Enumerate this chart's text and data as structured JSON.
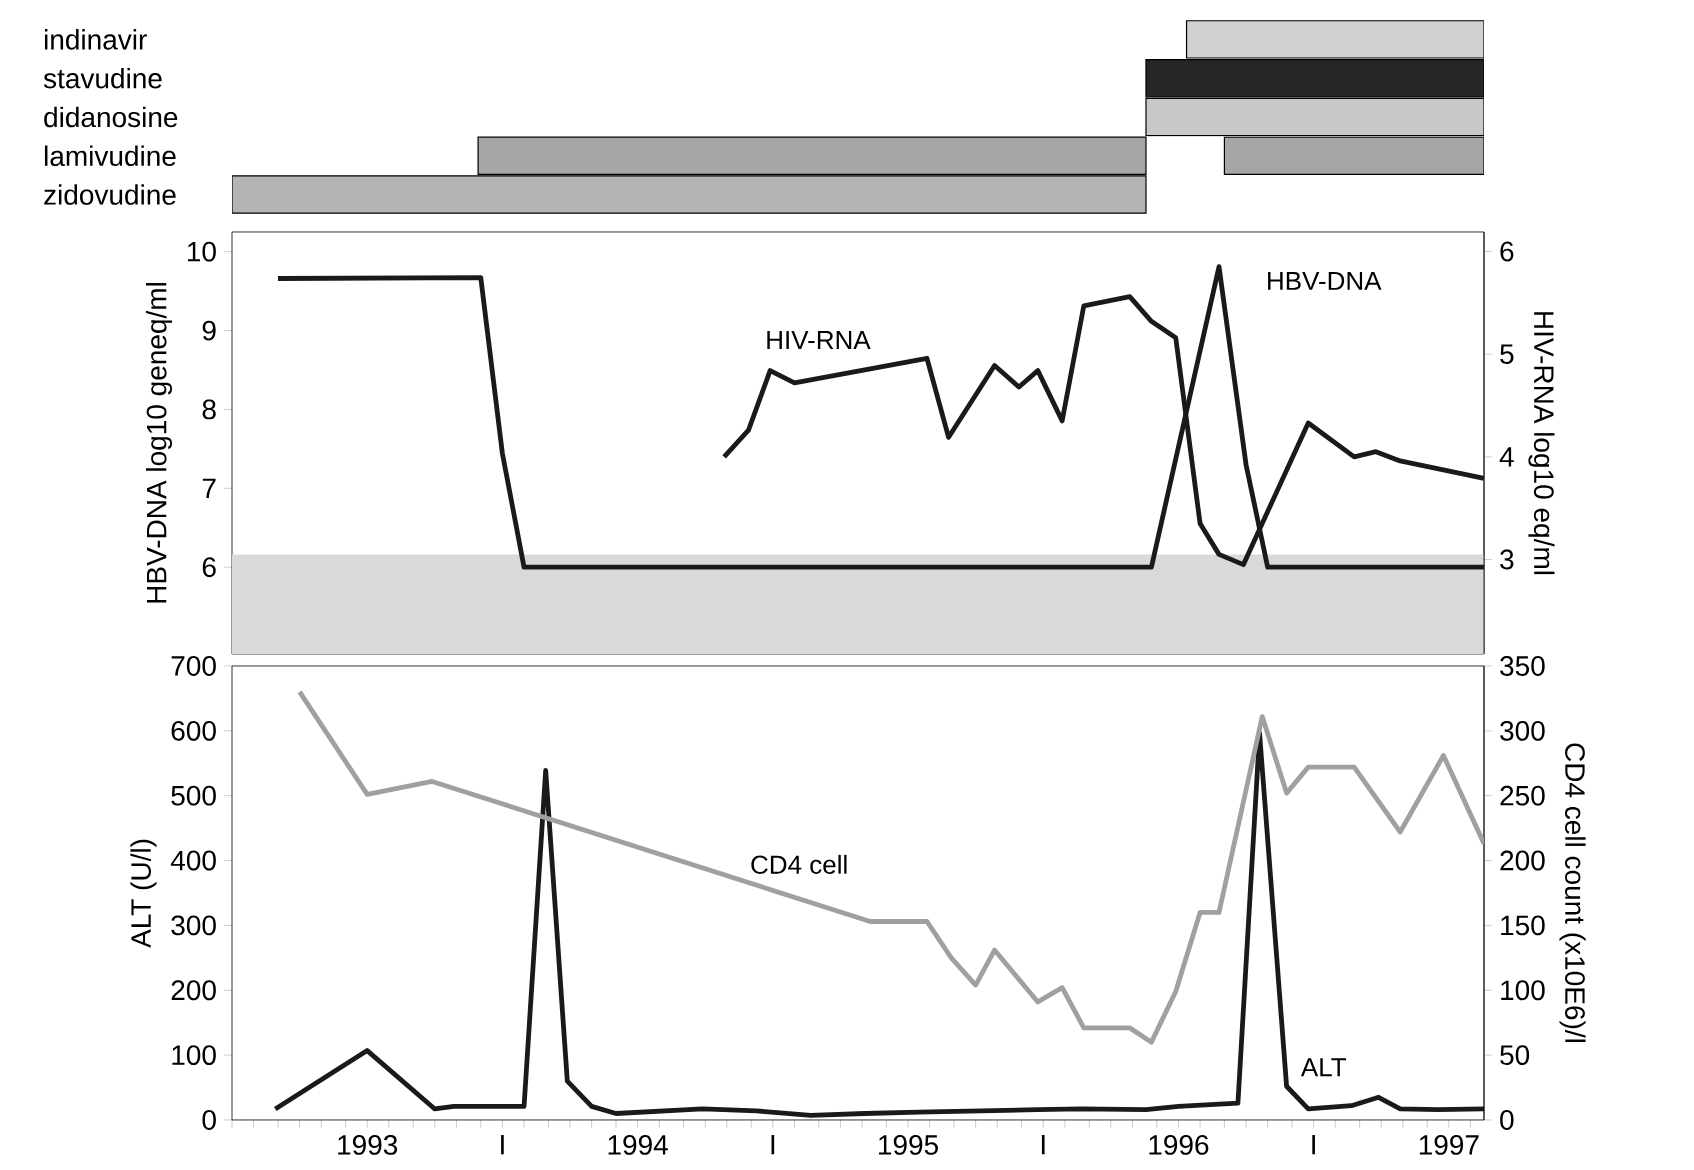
{
  "chart_data": [
    {
      "type": "bar",
      "orientation": "horizontal",
      "categories": [
        "indinavir",
        "stavudine",
        "didanosine",
        "lamivudine",
        "zidovudine"
      ],
      "xlim": [
        1992.5,
        1997.13
      ],
      "tick_labels": "y",
      "series": [
        {
          "base": [
            1996.03,
            1995.88,
            1995.88,
            1993.41,
            1992.5
          ],
          "values": [
            1.1,
            1.25,
            1.25,
            2.47,
            3.38
          ],
          "colors": [
            "#d0d0d0",
            "#262626",
            "#c8c8c8",
            "#a6a6a6",
            "#b4b4b4"
          ]
        },
        {
          "base": [
            null,
            null,
            null,
            1996.17,
            null
          ],
          "values": [
            null,
            null,
            null,
            0.96,
            null
          ],
          "color": "#a6a6a6"
        }
      ]
    },
    {
      "type": "line",
      "xlim": [
        1992.5,
        1997.13
      ],
      "ylim": [
        4.9,
        10.25
      ],
      "yticks": [
        6,
        7,
        8,
        9,
        10
      ],
      "y2lim": [
        2.08,
        6.19
      ],
      "y2ticks": [
        3,
        4,
        5,
        6
      ],
      "ylabel": "HBV-DNA log10 geneq/ml",
      "y2label": "HIV-RNA log10 eq/ml",
      "tick_labels": "y",
      "bands": [
        {
          "axis": "y",
          "from": 4.9,
          "to": 6.16,
          "color": "#d9d9d9"
        }
      ],
      "annotations": [
        "HIV-RNA",
        "HBV-DNA"
      ],
      "series": [
        {
          "color": "#1a1a1a",
          "x": [
            1992.67,
            1993.42,
            1993.5,
            1993.58,
            1995.9,
            1996.15,
            1996.25,
            1996.33,
            1997.13
          ],
          "values": [
            9.66,
            9.67,
            7.44,
            6.0,
            6.0,
            9.81,
            7.3,
            6.0,
            6.0
          ]
        },
        {
          "color": "#1a1a1a",
          "axis": "y2",
          "x": [
            1994.32,
            1994.41,
            1994.49,
            1994.58,
            1995.07,
            1995.15,
            1995.32,
            1995.41,
            1995.48,
            1995.57,
            1995.65,
            1995.82,
            1995.9,
            1995.99,
            1996.08,
            1996.15,
            1996.24,
            1996.48,
            1996.65,
            1996.73,
            1996.82,
            1997.13
          ],
          "values": [
            4.0,
            4.26,
            4.84,
            4.72,
            4.96,
            4.19,
            4.89,
            4.68,
            4.84,
            4.35,
            5.47,
            5.56,
            5.32,
            5.16,
            3.35,
            3.05,
            2.95,
            4.33,
            4.0,
            4.05,
            3.96,
            3.79
          ]
        }
      ]
    },
    {
      "type": "line",
      "xlim": [
        1992.5,
        1997.13
      ],
      "ylim": [
        0,
        700
      ],
      "yticks": [
        0,
        100,
        200,
        300,
        400,
        500,
        600,
        700
      ],
      "y2lim": [
        0,
        350
      ],
      "y2ticks": [
        0,
        50,
        100,
        150,
        200,
        250,
        300,
        350
      ],
      "ylabel": "ALT (U/l)",
      "y2label": "CD4 cell count (x10E6)/l",
      "xticks": [
        {
          "value": 1992.5,
          "label": null
        },
        {
          "value": 1992.583,
          "label": null
        },
        {
          "value": 1992.667,
          "label": null
        },
        {
          "value": 1992.75,
          "label": null
        },
        {
          "value": 1992.833,
          "label": null
        },
        {
          "value": 1992.917,
          "label": null
        },
        1993,
        {
          "value": 1993.083,
          "label": null
        },
        {
          "value": 1993.167,
          "label": null
        },
        {
          "value": 1993.25,
          "label": null
        },
        {
          "value": 1993.333,
          "label": null
        },
        {
          "value": 1993.417,
          "label": null
        },
        {
          "value": 1993.5,
          "label": "I"
        },
        {
          "value": 1993.583,
          "label": null
        },
        {
          "value": 1993.667,
          "label": null
        },
        {
          "value": 1993.75,
          "label": null
        },
        {
          "value": 1993.833,
          "label": null
        },
        {
          "value": 1993.917,
          "label": null
        },
        1994,
        {
          "value": 1994.083,
          "label": null
        },
        {
          "value": 1994.167,
          "label": null
        },
        {
          "value": 1994.25,
          "label": null
        },
        {
          "value": 1994.333,
          "label": null
        },
        {
          "value": 1994.417,
          "label": null
        },
        {
          "value": 1994.5,
          "label": "I"
        },
        {
          "value": 1994.583,
          "label": null
        },
        {
          "value": 1994.667,
          "label": null
        },
        {
          "value": 1994.75,
          "label": null
        },
        {
          "value": 1994.833,
          "label": null
        },
        {
          "value": 1994.917,
          "label": null
        },
        1995,
        {
          "value": 1995.083,
          "label": null
        },
        {
          "value": 1995.167,
          "label": null
        },
        {
          "value": 1995.25,
          "label": null
        },
        {
          "value": 1995.333,
          "label": null
        },
        {
          "value": 1995.417,
          "label": null
        },
        {
          "value": 1995.5,
          "label": "I"
        },
        {
          "value": 1995.583,
          "label": null
        },
        {
          "value": 1995.667,
          "label": null
        },
        {
          "value": 1995.75,
          "label": null
        },
        {
          "value": 1995.833,
          "label": null
        },
        {
          "value": 1995.917,
          "label": null
        },
        1996,
        {
          "value": 1996.083,
          "label": null
        },
        {
          "value": 1996.167,
          "label": null
        },
        {
          "value": 1996.25,
          "label": null
        },
        {
          "value": 1996.333,
          "label": null
        },
        {
          "value": 1996.417,
          "label": null
        },
        {
          "value": 1996.5,
          "label": "I"
        },
        {
          "value": 1996.583,
          "label": null
        },
        {
          "value": 1996.667,
          "label": null
        },
        {
          "value": 1996.75,
          "label": null
        },
        {
          "value": 1996.833,
          "label": null
        },
        {
          "value": 1996.917,
          "label": null
        },
        1997,
        {
          "value": 1997.083,
          "label": null
        }
      ],
      "annotations": [
        "CD4 cell",
        "ALT"
      ],
      "series": [
        {
          "color": "#a0a0a0",
          "axis": "y2",
          "x": [
            1992.75,
            1993,
            1993.24,
            1994.86,
            1995.07,
            1995.16,
            1995.25,
            1995.32,
            1995.48,
            1995.57,
            1995.65,
            1995.82,
            1995.9,
            1995.99,
            1996.08,
            1996.15,
            1996.31,
            1996.4,
            1996.48,
            1996.65,
            1996.82,
            1996.98,
            1997.13
          ],
          "values": [
            330,
            251,
            261,
            153,
            153,
            125,
            104,
            131,
            91,
            102,
            71,
            71,
            60,
            99,
            160,
            160,
            311,
            252,
            272,
            272,
            222,
            281,
            213
          ]
        },
        {
          "color": "#1a1a1a",
          "x": [
            1992.66,
            1993,
            1993.25,
            1993.32,
            1993.58,
            1993.66,
            1993.74,
            1993.83,
            1993.92,
            1994.24,
            1994.44,
            1994.64,
            1994.84,
            1995.04,
            1995.48,
            1995.64,
            1995.88,
            1996,
            1996.22,
            1996.3,
            1996.4,
            1996.48,
            1996.64,
            1996.74,
            1996.82,
            1996.96,
            1997.13
          ],
          "values": [
            17,
            107,
            17,
            21,
            21,
            539,
            60,
            21,
            10,
            17,
            14,
            7,
            10,
            12,
            16,
            17,
            16,
            21,
            26,
            596,
            52,
            17,
            22,
            35,
            17,
            16,
            17
          ]
        }
      ]
    }
  ]
}
